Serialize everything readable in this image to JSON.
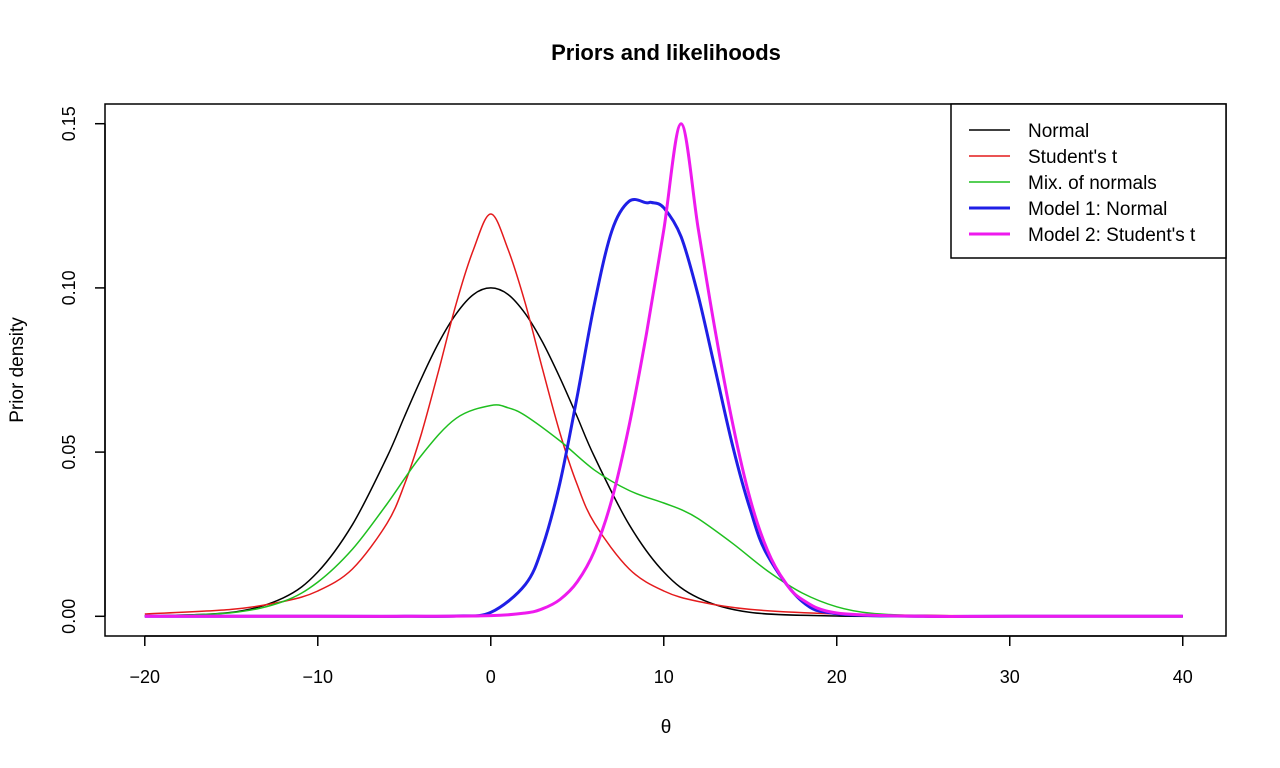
{
  "chart_data": {
    "type": "line",
    "title": "Priors and likelihoods",
    "xlabel": "θ",
    "ylabel": "Prior density",
    "xlim": [
      -22.3,
      42.5
    ],
    "ylim": [
      -0.006,
      0.156
    ],
    "x_ticks": [
      -20,
      -10,
      0,
      10,
      20,
      30,
      40
    ],
    "x_tick_labels": [
      "−20",
      "−10",
      "0",
      "10",
      "20",
      "30",
      "40"
    ],
    "y_ticks": [
      0.0,
      0.05,
      0.1,
      0.15
    ],
    "y_tick_labels": [
      "0.00",
      "0.05",
      "0.10",
      "0.15"
    ],
    "grid": false,
    "legend_position": "top-right",
    "series": [
      {
        "name": "Normal",
        "color": "#000000",
        "line_width": 1.5,
        "x": [
          -20,
          -15,
          -12,
          -10,
          -8,
          -6,
          -5,
          -4,
          -3,
          -2,
          -1,
          0,
          1,
          2,
          3,
          4,
          5,
          6,
          8,
          10,
          12,
          15,
          20,
          25,
          30,
          40
        ],
        "y": [
          0.0001,
          0.0012,
          0.0056,
          0.0135,
          0.0279,
          0.0485,
          0.0607,
          0.0726,
          0.0834,
          0.0921,
          0.098,
          0.1,
          0.098,
          0.0921,
          0.0834,
          0.0726,
          0.0607,
          0.0485,
          0.0279,
          0.0135,
          0.0056,
          0.0012,
          0.0001,
          0.0,
          0.0,
          0.0
        ]
      },
      {
        "name": "Student's t",
        "color": "#e41a1c",
        "line_width": 1.5,
        "x": [
          -20,
          -15,
          -12,
          -10,
          -8,
          -6,
          -5,
          -4,
          -3,
          -2,
          -1,
          0,
          1,
          2,
          3,
          4,
          5,
          6,
          8,
          10,
          12,
          15,
          20,
          25,
          30,
          40
        ],
        "y": [
          0.0007,
          0.0021,
          0.0045,
          0.0077,
          0.0144,
          0.0283,
          0.04,
          0.0558,
          0.0751,
          0.0952,
          0.1117,
          0.1225,
          0.1117,
          0.0952,
          0.0751,
          0.0558,
          0.04,
          0.0283,
          0.0144,
          0.0077,
          0.0045,
          0.0021,
          0.0007,
          0.0003,
          0.0001,
          0.0
        ]
      },
      {
        "name": "Mix. of normals",
        "color": "#1fbf1f",
        "line_width": 1.5,
        "x": [
          -20,
          -15,
          -12,
          -10,
          -8,
          -6,
          -4,
          -2,
          0,
          1,
          2,
          4,
          6,
          8,
          10,
          11,
          12,
          14,
          16,
          18,
          20,
          22,
          25
        ],
        "y": [
          0.0001,
          0.0011,
          0.0045,
          0.0104,
          0.0204,
          0.0342,
          0.0491,
          0.0603,
          0.0642,
          0.0635,
          0.0611,
          0.0534,
          0.0445,
          0.0383,
          0.0345,
          0.0325,
          0.0297,
          0.0221,
          0.0138,
          0.0071,
          0.0029,
          0.0009,
          0.0001
        ]
      },
      {
        "name": "Model 1: Normal",
        "color": "#1f1fe6",
        "line_width": 3,
        "x": [
          -20,
          -10,
          -5,
          -2,
          0,
          2,
          3,
          4,
          5,
          6,
          7,
          8,
          9,
          9.3,
          10,
          11,
          12,
          13,
          14,
          15,
          16,
          18,
          20,
          25,
          30,
          40
        ],
        "y": [
          0.0,
          0.0,
          0.0,
          0.0001,
          0.0012,
          0.0097,
          0.0213,
          0.0407,
          0.0671,
          0.0954,
          0.1174,
          0.1264,
          0.1259,
          0.126,
          0.1244,
          0.1156,
          0.0974,
          0.0745,
          0.0515,
          0.0325,
          0.0185,
          0.0045,
          0.0008,
          0.0,
          0.0,
          0.0
        ]
      },
      {
        "name": "Model 2: Student's t",
        "color": "#ee1aee",
        "line_width": 3,
        "x": [
          -20,
          -10,
          -5,
          0,
          2,
          3,
          4,
          5,
          6,
          7,
          8,
          9,
          10,
          11,
          12,
          13,
          14,
          15,
          16,
          17,
          18,
          20,
          25,
          30,
          40
        ],
        "y": [
          0.0,
          0.0,
          0.0,
          0.0002,
          0.001,
          0.0023,
          0.0051,
          0.0105,
          0.02,
          0.0356,
          0.0582,
          0.0861,
          0.1177,
          0.15,
          0.1177,
          0.0861,
          0.0582,
          0.0356,
          0.02,
          0.0105,
          0.0051,
          0.001,
          0.0,
          0.0,
          0.0
        ]
      }
    ]
  }
}
